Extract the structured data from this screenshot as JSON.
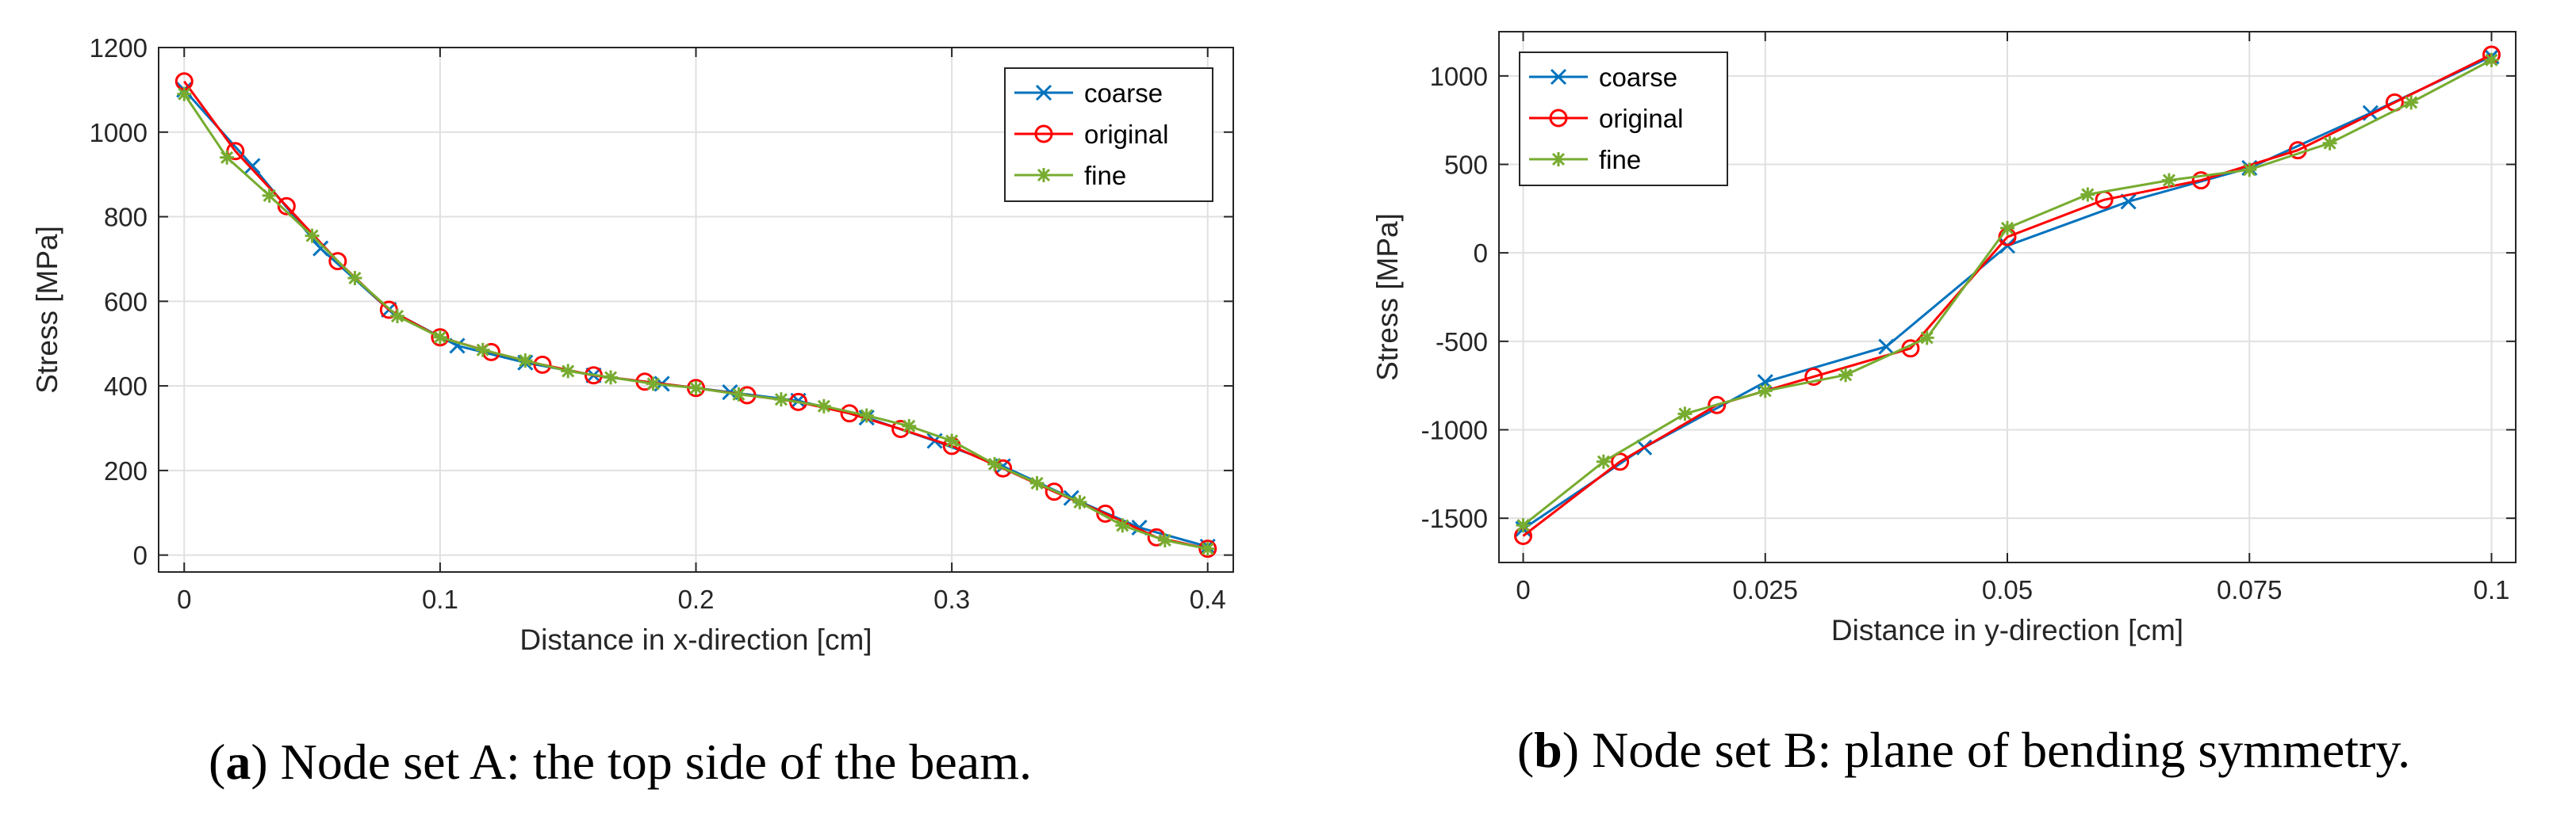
{
  "colors": {
    "coarse": "#0072BD",
    "original": "#FF0000",
    "fine": "#77AC30",
    "grid": "#e0e0e0",
    "axis": "#262626"
  },
  "chart_data": [
    {
      "type": "line",
      "caption_tag": "a",
      "caption_text": " Node set A: the top side of the beam.",
      "xlabel": "Distance in x-direction [cm]",
      "ylabel": "Stress [MPa]",
      "xlim": [
        -0.01,
        0.41
      ],
      "ylim": [
        -40,
        1200
      ],
      "xticks": [
        0,
        0.1,
        0.2,
        0.3,
        0.4
      ],
      "xtick_labels": [
        "0",
        "0.1",
        "0.2",
        "0.3",
        "0.4"
      ],
      "yticks": [
        0,
        200,
        400,
        600,
        800,
        1000,
        1200
      ],
      "ytick_labels": [
        "0",
        "200",
        "400",
        "600",
        "800",
        "1000",
        "1200"
      ],
      "grid": true,
      "legend_position": "top-right",
      "series": [
        {
          "name": "coarse",
          "marker": "x",
          "x": [
            0,
            0.0267,
            0.0533,
            0.08,
            0.1067,
            0.1333,
            0.16,
            0.1867,
            0.2133,
            0.24,
            0.2667,
            0.2933,
            0.32,
            0.3467,
            0.3733,
            0.4
          ],
          "y": [
            1100,
            920,
            725,
            580,
            495,
            455,
            425,
            405,
            385,
            365,
            325,
            270,
            210,
            135,
            65,
            20
          ]
        },
        {
          "name": "original",
          "marker": "o",
          "x": [
            0,
            0.02,
            0.04,
            0.06,
            0.08,
            0.1,
            0.12,
            0.14,
            0.16,
            0.18,
            0.2,
            0.22,
            0.24,
            0.26,
            0.28,
            0.3,
            0.32,
            0.34,
            0.36,
            0.38,
            0.4
          ],
          "y": [
            1120,
            955,
            825,
            695,
            580,
            515,
            480,
            450,
            425,
            410,
            395,
            378,
            362,
            335,
            298,
            258,
            205,
            150,
            98,
            42,
            15
          ]
        },
        {
          "name": "fine",
          "marker": "*",
          "x": [
            0,
            0.0167,
            0.0333,
            0.05,
            0.0667,
            0.0833,
            0.1,
            0.1167,
            0.1333,
            0.15,
            0.1667,
            0.1833,
            0.2,
            0.2167,
            0.2333,
            0.25,
            0.2667,
            0.2833,
            0.3,
            0.3167,
            0.3333,
            0.35,
            0.3667,
            0.3833,
            0.4
          ],
          "y": [
            1090,
            940,
            850,
            755,
            655,
            565,
            515,
            485,
            460,
            435,
            420,
            405,
            395,
            380,
            368,
            352,
            330,
            305,
            270,
            215,
            170,
            125,
            70,
            35,
            15
          ]
        }
      ]
    },
    {
      "type": "line",
      "caption_tag": "b",
      "caption_text": " Node set B: plane of bending symmetry.",
      "xlabel": "Distance in y-direction [cm]",
      "ylabel": "Stress [MPa]",
      "xlim": [
        -0.0025,
        0.1025
      ],
      "ylim": [
        -1750,
        1250
      ],
      "xticks": [
        0,
        0.025,
        0.05,
        0.075,
        0.1
      ],
      "xtick_labels": [
        "0",
        "0.025",
        "0.05",
        "0.075",
        "0.1"
      ],
      "yticks": [
        -1500,
        -1000,
        -500,
        0,
        500,
        1000
      ],
      "ytick_labels": [
        "-1500",
        "-1000",
        "-500",
        "0",
        "500",
        "1000"
      ],
      "grid": true,
      "legend_position": "top-left",
      "series": [
        {
          "name": "coarse",
          "marker": "x",
          "x": [
            0,
            0.0125,
            0.025,
            0.0375,
            0.05,
            0.0625,
            0.075,
            0.0875,
            0.1
          ],
          "y": [
            -1560,
            -1100,
            -730,
            -530,
            40,
            290,
            480,
            790,
            1110
          ]
        },
        {
          "name": "original",
          "marker": "o",
          "x": [
            0,
            0.01,
            0.02,
            0.03,
            0.04,
            0.05,
            0.06,
            0.07,
            0.08,
            0.09,
            0.1
          ],
          "y": [
            -1600,
            -1180,
            -860,
            -700,
            -540,
            90,
            300,
            410,
            580,
            850,
            1120
          ]
        },
        {
          "name": "fine",
          "marker": "*",
          "x": [
            0,
            0.0083,
            0.0167,
            0.025,
            0.0333,
            0.0417,
            0.05,
            0.0583,
            0.0667,
            0.075,
            0.0833,
            0.0917,
            0.1
          ],
          "y": [
            -1540,
            -1180,
            -910,
            -780,
            -690,
            -480,
            140,
            330,
            410,
            470,
            620,
            850,
            1090
          ]
        }
      ]
    }
  ]
}
